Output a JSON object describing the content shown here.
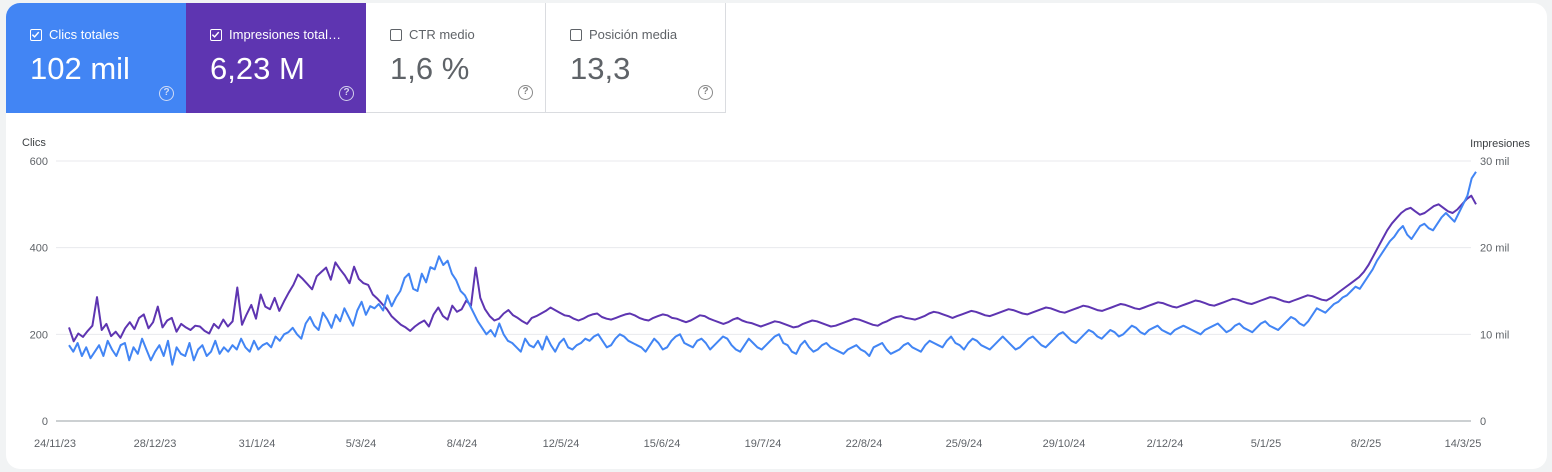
{
  "metrics": [
    {
      "label": "Clics totales",
      "value": "102 mil",
      "checked": true,
      "color": "#4285f4"
    },
    {
      "label": "Impresiones total…",
      "value": "6,23 M",
      "checked": true,
      "color": "#5e35b1"
    },
    {
      "label": "CTR medio",
      "value": "1,6 %",
      "checked": false,
      "color": "#ffffff"
    },
    {
      "label": "Posición media",
      "value": "13,3",
      "checked": false,
      "color": "#ffffff"
    }
  ],
  "chart_data": {
    "type": "line",
    "left_axis_title": "Clics",
    "right_axis_title": "Impresiones",
    "left_ticks": [
      "0",
      "200",
      "400",
      "600"
    ],
    "right_ticks": [
      "0",
      "10 mil",
      "20 mil",
      "30 mil"
    ],
    "left_ylim": [
      0,
      600
    ],
    "right_ylim": [
      0,
      30000
    ],
    "x_ticks": [
      "24/11/23",
      "28/12/23",
      "31/1/24",
      "5/3/24",
      "8/4/24",
      "12/5/24",
      "15/6/24",
      "19/7/24",
      "22/8/24",
      "25/9/24",
      "29/10/24",
      "2/12/24",
      "5/1/25",
      "8/2/25",
      "14/3/25"
    ],
    "grid": true,
    "series": [
      {
        "name": "Clics totales",
        "axis": "left",
        "color": "#4285f4",
        "values": [
          175,
          160,
          180,
          150,
          170,
          145,
          160,
          175,
          150,
          185,
          165,
          150,
          175,
          180,
          140,
          170,
          155,
          190,
          165,
          140,
          160,
          175,
          150,
          185,
          130,
          170,
          155,
          150,
          180,
          140,
          165,
          175,
          150,
          160,
          185,
          155,
          170,
          160,
          175,
          165,
          190,
          170,
          160,
          185,
          165,
          175,
          180,
          170,
          195,
          185,
          200,
          205,
          215,
          200,
          190,
          225,
          240,
          220,
          210,
          250,
          235,
          215,
          245,
          230,
          260,
          240,
          220,
          255,
          275,
          245,
          265,
          260,
          270,
          255,
          290,
          265,
          285,
          300,
          330,
          340,
          305,
          300,
          340,
          320,
          355,
          350,
          380,
          360,
          370,
          340,
          325,
          300,
          290,
          270,
          250,
          230,
          215,
          200,
          210,
          195,
          225,
          200,
          185,
          180,
          170,
          160,
          190,
          175,
          170,
          185,
          165,
          195,
          175,
          160,
          180,
          190,
          170,
          165,
          175,
          180,
          190,
          185,
          195,
          200,
          185,
          170,
          175,
          190,
          200,
          195,
          185,
          180,
          175,
          170,
          160,
          175,
          190,
          180,
          165,
          170,
          185,
          195,
          200,
          180,
          175,
          170,
          185,
          190,
          180,
          165,
          175,
          185,
          195,
          190,
          175,
          165,
          160,
          175,
          190,
          180,
          170,
          165,
          175,
          185,
          195,
          200,
          180,
          175,
          160,
          155,
          175,
          185,
          170,
          160,
          165,
          175,
          180,
          170,
          165,
          160,
          155,
          165,
          170,
          175,
          165,
          160,
          150,
          170,
          175,
          180,
          165,
          155,
          160,
          165,
          175,
          180,
          170,
          165,
          160,
          175,
          185,
          180,
          175,
          170,
          185,
          195,
          180,
          175,
          165,
          180,
          190,
          185,
          175,
          170,
          165,
          175,
          185,
          195,
          185,
          175,
          165,
          170,
          180,
          190,
          195,
          185,
          175,
          170,
          180,
          190,
          200,
          205,
          195,
          185,
          180,
          190,
          200,
          210,
          205,
          195,
          190,
          200,
          210,
          205,
          195,
          200,
          210,
          220,
          215,
          205,
          200,
          210,
          215,
          220,
          210,
          205,
          200,
          210,
          215,
          220,
          215,
          210,
          205,
          200,
          210,
          215,
          220,
          225,
          215,
          205,
          210,
          220,
          225,
          215,
          210,
          205,
          215,
          225,
          230,
          220,
          215,
          210,
          220,
          230,
          240,
          235,
          225,
          220,
          230,
          245,
          260,
          255,
          250,
          260,
          270,
          275,
          285,
          290,
          300,
          310,
          305,
          320,
          335,
          350,
          370,
          385,
          400,
          415,
          425,
          440,
          450,
          430,
          420,
          435,
          450,
          455,
          445,
          440,
          455,
          470,
          480,
          470,
          460,
          480,
          500,
          520,
          560,
          575
        ]
      },
      {
        "name": "Impresiones totales",
        "axis": "right",
        "color": "#5e35b1",
        "values": [
          10800,
          9200,
          10100,
          9700,
          10400,
          11000,
          14300,
          10500,
          11200,
          9800,
          10300,
          9600,
          10700,
          11400,
          10600,
          11900,
          12300,
          10700,
          11400,
          13200,
          10800,
          11600,
          11900,
          10300,
          11200,
          10800,
          10500,
          11000,
          10900,
          10400,
          10100,
          11200,
          10700,
          11700,
          10900,
          11500,
          15400,
          11100,
          12300,
          13400,
          11800,
          14600,
          13200,
          12900,
          14200,
          12700,
          13800,
          14800,
          15700,
          16900,
          16400,
          15800,
          15200,
          16700,
          17200,
          17700,
          16300,
          18300,
          17500,
          16800,
          15900,
          17800,
          16400,
          15900,
          15700,
          14600,
          14100,
          13500,
          12900,
          12100,
          11600,
          11100,
          10800,
          10400,
          10900,
          11300,
          11600,
          10900,
          12300,
          13100,
          12100,
          11700,
          13300,
          12600,
          12900,
          13900,
          13300,
          17700,
          14200,
          12900,
          12100,
          11600,
          11800,
          12400,
          12800,
          12200,
          11900,
          11500,
          11200,
          11900,
          12100,
          12400,
          12700,
          13100,
          12800,
          12500,
          12200,
          12100,
          11800,
          11600,
          11800,
          12100,
          12300,
          12400,
          12000,
          11800,
          11700,
          11900,
          12100,
          12300,
          12400,
          12200,
          11900,
          11700,
          11600,
          11900,
          12100,
          12300,
          12200,
          11900,
          11800,
          11600,
          11400,
          11600,
          11900,
          12200,
          12100,
          11800,
          11600,
          11400,
          11200,
          11400,
          11700,
          11900,
          11600,
          11400,
          11300,
          11100,
          10900,
          11100,
          11300,
          11500,
          11400,
          11200,
          11000,
          10800,
          10900,
          11200,
          11400,
          11600,
          11500,
          11300,
          11100,
          10900,
          11000,
          11200,
          11400,
          11600,
          11800,
          11700,
          11500,
          11300,
          11100,
          11000,
          11300,
          11500,
          11800,
          12000,
          12100,
          11900,
          11800,
          11700,
          11900,
          12100,
          12400,
          12600,
          12500,
          12300,
          12100,
          11900,
          12100,
          12300,
          12500,
          12700,
          12600,
          12400,
          12200,
          12100,
          12300,
          12500,
          12700,
          12900,
          12800,
          12600,
          12400,
          12300,
          12500,
          12700,
          12900,
          13100,
          13000,
          12800,
          12600,
          12500,
          12700,
          12900,
          13100,
          13300,
          13200,
          13000,
          12800,
          12700,
          12900,
          13100,
          13300,
          13500,
          13400,
          13200,
          13000,
          12900,
          13100,
          13300,
          13500,
          13700,
          13600,
          13400,
          13200,
          13100,
          13300,
          13500,
          13700,
          13900,
          13800,
          13600,
          13400,
          13300,
          13500,
          13700,
          13900,
          14100,
          14000,
          13800,
          13600,
          13500,
          13700,
          13900,
          14100,
          14300,
          14200,
          14000,
          13800,
          13700,
          13900,
          14100,
          14300,
          14500,
          14400,
          14200,
          14000,
          13900,
          14200,
          14600,
          15000,
          15400,
          15800,
          16200,
          16600,
          17200,
          18000,
          19000,
          20000,
          21000,
          22000,
          22800,
          23400,
          24000,
          24400,
          24600,
          24200,
          23800,
          24000,
          24400,
          24800,
          25000,
          24600,
          24200,
          24000,
          24400,
          25000,
          25600,
          26000,
          25000
        ]
      }
    ]
  }
}
